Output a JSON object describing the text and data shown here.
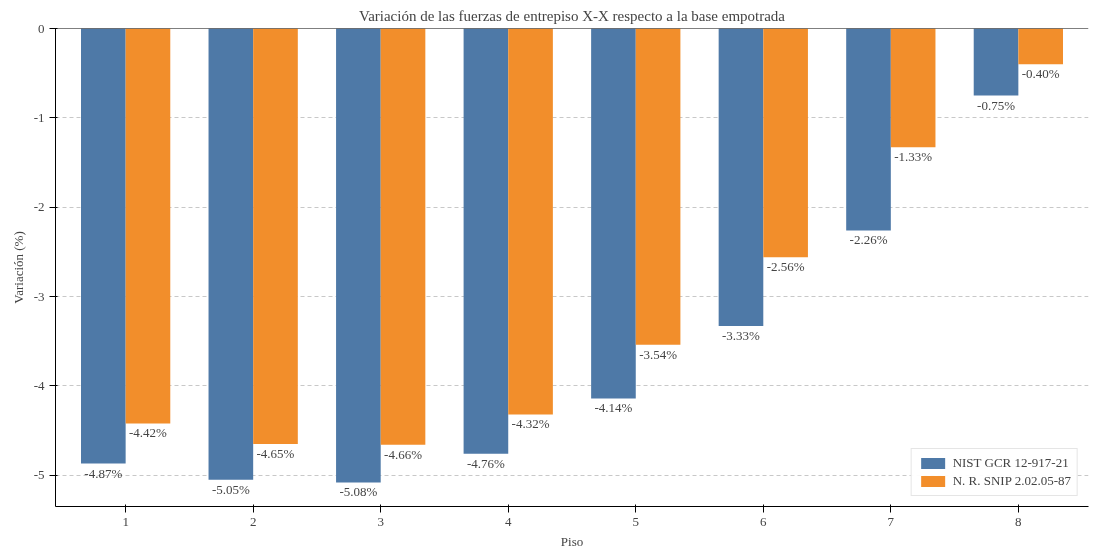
{
  "chart_data": {
    "type": "bar",
    "title": "Variación de las fuerzas de entrepiso X-X respecto a la base empotrada",
    "xlabel": "Piso",
    "ylabel": "Variación (%)",
    "categories": [
      "1",
      "2",
      "3",
      "4",
      "5",
      "6",
      "7",
      "8"
    ],
    "series": [
      {
        "name": "NIST GCR 12-917-21",
        "color": "#4e79a7",
        "values": [
          -4.87,
          -5.05,
          -5.08,
          -4.76,
          -4.14,
          -3.33,
          -2.26,
          -0.75
        ],
        "value_labels": [
          "-4.87%",
          "-5.05%",
          "-5.08%",
          "-4.76%",
          "-4.14%",
          "-3.33%",
          "-2.26%",
          "-0.75%"
        ]
      },
      {
        "name": "N. R. SNIP 2.02.05-87",
        "color": "#f28e2b",
        "values": [
          -4.42,
          -4.65,
          -4.66,
          -4.32,
          -3.54,
          -2.56,
          -1.33,
          -0.4
        ],
        "value_labels": [
          "-4.42%",
          "-4.65%",
          "-4.66%",
          "-4.32%",
          "-3.54%",
          "-2.56%",
          "-1.33%",
          "-0.40%"
        ]
      }
    ],
    "ylim": [
      -5.35,
      0
    ],
    "yticks": [
      0,
      -1,
      -2,
      -3,
      -4,
      -5
    ],
    "grid": "y",
    "legend": "bottom right",
    "ref_lines": [
      {
        "axis": "y",
        "value": 0,
        "color": "#000000"
      }
    ]
  }
}
